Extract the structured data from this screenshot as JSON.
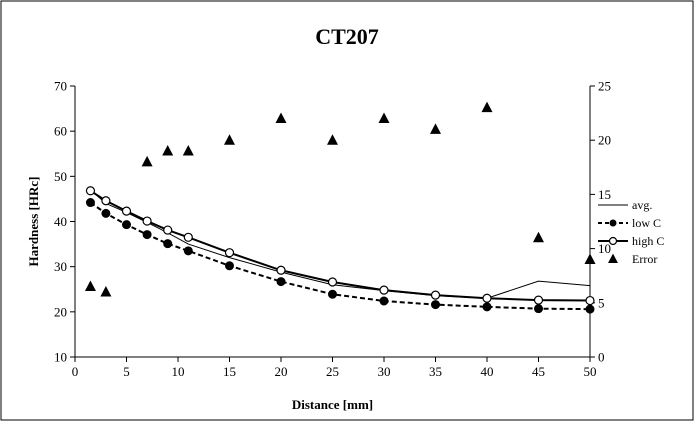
{
  "chart_data": {
    "type": "line",
    "title": "CT207",
    "xlabel": "Distance [mm]",
    "ylabel": "Hardness [HRc]",
    "y2label": "",
    "xlim": [
      0,
      50
    ],
    "ylim": [
      10,
      70
    ],
    "y2lim": [
      0,
      25
    ],
    "x_ticks": [
      0,
      5,
      10,
      15,
      20,
      25,
      30,
      35,
      40,
      45,
      50
    ],
    "y_ticks": [
      10,
      20,
      30,
      40,
      50,
      60,
      70
    ],
    "y2_ticks": [
      0,
      5,
      10,
      15,
      20,
      25
    ],
    "grid": false,
    "legend_position": "right",
    "series": [
      {
        "name": "avg.",
        "axis": "left",
        "style": "thin-solid",
        "color": "#000000",
        "x": [
          1.5,
          3,
          5,
          7,
          9,
          11,
          15,
          20,
          25,
          30,
          35,
          40,
          45,
          50
        ],
        "y": [
          47.0,
          44.0,
          42.0,
          39.8,
          37.5,
          35.0,
          32.0,
          28.8,
          26.0,
          24.7,
          23.6,
          23.0,
          26.8,
          25.8
        ]
      },
      {
        "name": "low C",
        "axis": "left",
        "style": "dashed-filled-circle",
        "color": "#000000",
        "x": [
          1.5,
          3,
          5,
          7,
          9,
          11,
          15,
          20,
          25,
          30,
          35,
          40,
          45,
          50
        ],
        "y": [
          44.2,
          41.8,
          39.3,
          37.1,
          35.1,
          33.5,
          30.2,
          26.7,
          23.9,
          22.4,
          21.6,
          21.1,
          20.7,
          20.6
        ]
      },
      {
        "name": "high C",
        "axis": "left",
        "style": "solid-open-circle",
        "color": "#000000",
        "x": [
          1.5,
          3,
          5,
          7,
          9,
          11,
          15,
          20,
          25,
          30,
          35,
          40,
          45,
          50
        ],
        "y": [
          46.8,
          44.6,
          42.3,
          40.1,
          38.1,
          36.5,
          33.1,
          29.2,
          26.6,
          24.8,
          23.7,
          23.0,
          22.6,
          22.5
        ]
      },
      {
        "name": "Error",
        "axis": "right",
        "style": "triangle-markers",
        "color": "#000000",
        "x": [
          1.5,
          3,
          7,
          9,
          11,
          15,
          20,
          25,
          30,
          35,
          40,
          45,
          50
        ],
        "y": [
          6.5,
          6.0,
          18.0,
          19.0,
          19.0,
          20.0,
          22.0,
          20.0,
          22.0,
          21.0,
          23.0,
          11.0,
          9.0
        ]
      }
    ]
  }
}
